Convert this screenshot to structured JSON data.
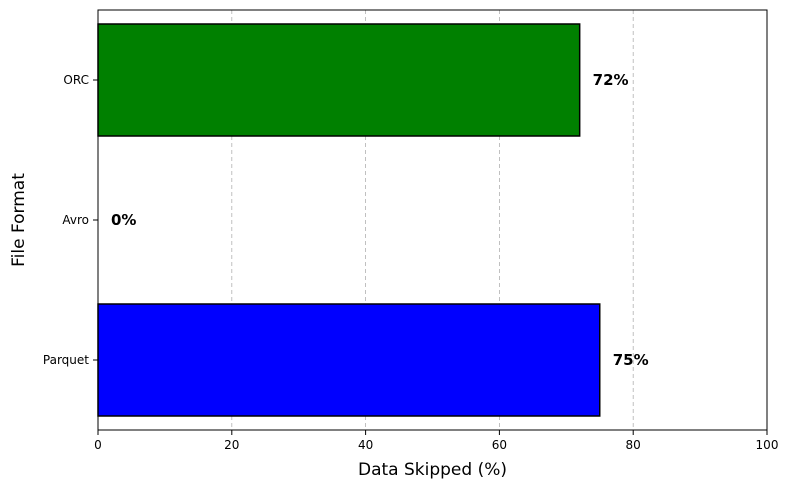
{
  "chart_data": {
    "type": "bar",
    "orientation": "horizontal",
    "categories": [
      "Parquet",
      "Avro",
      "ORC"
    ],
    "values": [
      75,
      0,
      72
    ],
    "value_labels": [
      "75%",
      "0%",
      "72%"
    ],
    "colors": [
      "#0000ff",
      "#0000ff",
      "#008000"
    ],
    "xlabel": "Data Skipped (%)",
    "ylabel": "File Format",
    "xlim": [
      0,
      100
    ],
    "xticks": [
      0,
      20,
      40,
      60,
      80,
      100
    ],
    "xtick_labels": [
      "0",
      "20",
      "40",
      "60",
      "80",
      "100"
    ],
    "grid": "x-dashed",
    "legend": "none"
  }
}
